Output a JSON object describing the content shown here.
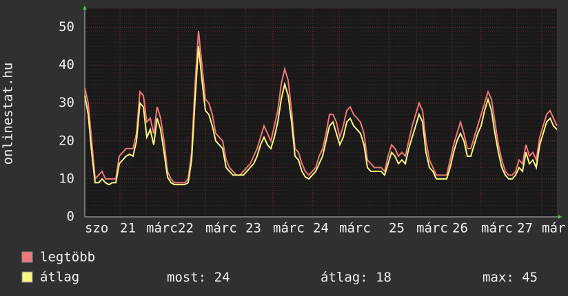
{
  "chart_data": {
    "type": "line",
    "ylabel": "onlinestat.hu",
    "x": [
      0,
      1,
      2,
      3,
      4,
      5,
      6,
      7,
      8,
      9,
      10,
      11,
      12,
      13,
      14,
      15,
      16,
      17,
      18,
      19,
      20,
      21,
      22,
      23,
      24,
      25,
      26,
      27,
      28,
      29,
      30,
      31,
      32,
      33,
      34,
      35,
      36,
      37,
      38,
      39,
      40,
      41,
      42,
      43,
      44,
      45,
      46,
      47,
      48,
      49,
      50,
      51,
      52,
      53,
      54,
      55,
      56,
      57,
      58,
      59,
      60,
      61,
      62,
      63,
      64,
      65,
      66,
      67,
      68,
      69,
      70,
      71,
      72,
      73,
      74,
      75,
      76,
      77,
      78,
      79,
      80,
      81,
      82,
      83,
      84,
      85,
      86,
      87,
      88,
      89,
      90,
      91,
      92,
      93,
      94,
      95,
      96,
      97,
      98,
      99,
      100,
      101,
      102,
      103,
      104,
      105,
      106,
      107,
      108,
      109,
      110,
      111,
      112,
      113,
      114,
      115,
      116,
      117,
      118,
      119,
      120,
      121,
      122,
      123,
      124,
      125,
      126,
      127,
      128,
      129,
      130,
      131,
      132,
      133,
      134,
      135,
      136,
      137
    ],
    "series": [
      {
        "name": "legtöbb",
        "color": "#f07878",
        "values": [
          34,
          30,
          20,
          10,
          11,
          12,
          10,
          10,
          10,
          10,
          16,
          17,
          18,
          18,
          18,
          22,
          33,
          32,
          25,
          26,
          22,
          29,
          26,
          20,
          12,
          10,
          9,
          9,
          9,
          9,
          10,
          17,
          35,
          49,
          40,
          31,
          30,
          27,
          22,
          21,
          20,
          15,
          13,
          12,
          11,
          11,
          12,
          13,
          14,
          16,
          18,
          21,
          24,
          22,
          20,
          24,
          28,
          35,
          39,
          36,
          28,
          18,
          17,
          14,
          12,
          11,
          12,
          13,
          16,
          18,
          22,
          27,
          27,
          25,
          21,
          24,
          28,
          29,
          27,
          26,
          25,
          22,
          15,
          14,
          13,
          13,
          13,
          12,
          16,
          19,
          18,
          16,
          17,
          16,
          20,
          24,
          27,
          30,
          28,
          20,
          15,
          13,
          11,
          11,
          11,
          11,
          15,
          19,
          22,
          25,
          22,
          18,
          18,
          21,
          24,
          27,
          30,
          33,
          31,
          25,
          19,
          15,
          12,
          11,
          11,
          12,
          15,
          14,
          19,
          16,
          17,
          15,
          21,
          24,
          27,
          28,
          26,
          24
        ]
      },
      {
        "name": "átlag",
        "color": "#f8f880",
        "values": [
          32,
          27,
          17,
          9,
          9,
          10,
          9,
          8.5,
          9,
          9,
          14,
          15,
          16,
          16.5,
          16,
          20,
          30,
          29,
          21,
          23,
          19,
          26,
          23,
          17,
          10.5,
          9,
          8.5,
          8.5,
          8.5,
          8.5,
          9,
          15,
          31,
          45,
          36,
          28,
          27,
          24,
          20,
          19,
          18,
          13,
          12,
          11,
          11,
          11,
          11,
          12,
          13,
          14,
          16,
          19,
          21,
          19,
          18,
          21,
          25,
          31,
          35,
          32,
          25,
          16,
          15,
          12,
          10.5,
          10,
          11,
          12,
          14,
          16,
          20,
          24,
          25,
          22,
          19,
          21,
          25,
          26,
          24,
          23,
          22,
          19,
          13,
          12,
          12,
          12,
          12,
          11,
          14,
          17,
          16,
          14,
          15,
          14,
          18,
          21,
          24,
          27,
          25,
          17,
          13,
          12,
          10,
          10,
          10,
          10,
          13,
          17,
          20,
          22,
          20,
          16,
          16,
          19,
          22,
          24,
          28,
          31,
          28,
          22,
          17,
          13,
          11,
          10,
          10,
          11,
          13,
          12,
          17,
          14,
          15,
          13,
          19,
          22,
          25,
          26,
          24,
          23
        ]
      }
    ],
    "xlim": [
      0,
      137
    ],
    "ylim": [
      0,
      55
    ],
    "yticks": [
      0,
      10,
      20,
      30,
      40,
      50
    ],
    "xticks": [
      {
        "value": 0,
        "label": "szo"
      },
      {
        "value": 10.2,
        "label": "21"
      },
      {
        "value": 17.8,
        "label": "márc"
      },
      {
        "value": 27,
        "label": "22"
      },
      {
        "value": 35,
        "label": "márc"
      },
      {
        "value": 46.6,
        "label": "23"
      },
      {
        "value": 54.6,
        "label": "márc"
      },
      {
        "value": 66.2,
        "label": "24"
      },
      {
        "value": 73.8,
        "label": "márc"
      },
      {
        "value": 88.2,
        "label": "25"
      },
      {
        "value": 96.2,
        "label": "márc"
      },
      {
        "value": 106.6,
        "label": "26"
      },
      {
        "value": 115,
        "label": "márc"
      },
      {
        "value": 125.4,
        "label": "27"
      },
      {
        "value": 132.6,
        "label": "már"
      }
    ],
    "grid": true,
    "stats": [
      {
        "label": "most:",
        "value": 24
      },
      {
        "label": "átlag:",
        "value": 18
      },
      {
        "label": "max:",
        "value": 45
      }
    ]
  }
}
